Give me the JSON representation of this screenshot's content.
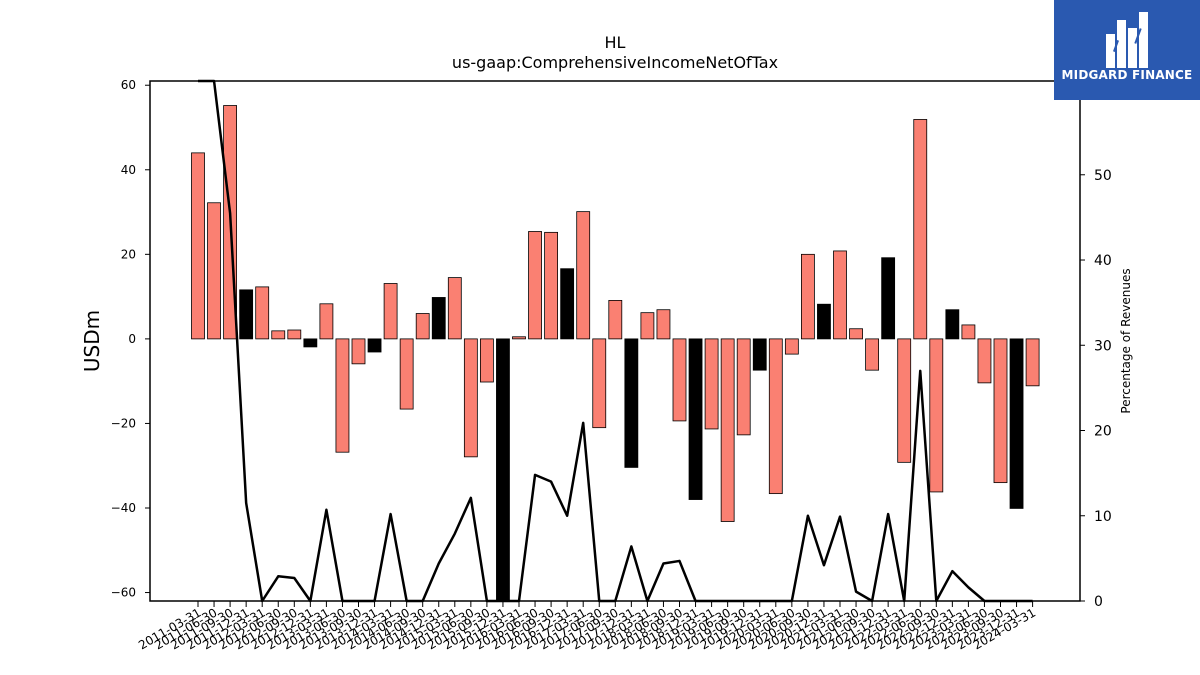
{
  "brand": {
    "name": "MIDGARD FINANCE",
    "color": "#2a59b0"
  },
  "chart_data": {
    "type": "bar",
    "title": "HL",
    "subtitle": "us-gaap:ComprehensiveIncomeNetOfTax",
    "ylabel": "USDm",
    "y2label": "Percentage of Revenues",
    "ylim": [
      -62,
      61
    ],
    "y2lim": [
      0,
      61
    ],
    "yticks": [
      -60,
      -40,
      -20,
      0,
      20,
      40,
      60
    ],
    "y2ticks": [
      0,
      10,
      20,
      30,
      40,
      50
    ],
    "grid": false,
    "colors": {
      "bar_default": "#fa8072",
      "bar_highlight": "#000000",
      "line": "#000000"
    },
    "categories": [
      "2011-03-31",
      "2011-06-30",
      "2011-09-30",
      "2011-12-31",
      "2012-03-31",
      "2012-06-30",
      "2012-09-30",
      "2012-12-31",
      "2013-03-31",
      "2013-06-30",
      "2013-09-30",
      "2013-12-31",
      "2014-03-31",
      "2014-06-30",
      "2014-09-30",
      "2014-12-31",
      "2015-03-31",
      "2015-06-30",
      "2015-09-30",
      "2015-12-31",
      "2016-03-31",
      "2016-06-30",
      "2016-09-30",
      "2016-12-31",
      "2017-03-31",
      "2017-06-30",
      "2017-09-30",
      "2017-12-31",
      "2018-03-31",
      "2018-06-30",
      "2018-09-30",
      "2018-12-31",
      "2019-03-31",
      "2019-06-30",
      "2019-09-30",
      "2019-12-31",
      "2020-03-31",
      "2020-06-30",
      "2020-09-30",
      "2020-12-31",
      "2021-03-31",
      "2021-06-30",
      "2021-09-30",
      "2021-12-31",
      "2022-03-31",
      "2022-06-30",
      "2022-09-30",
      "2022-12-31",
      "2023-03-31",
      "2023-06-30",
      "2023-09-30",
      "2023-12-31",
      "2024-03-31"
    ],
    "values": [
      44,
      32.2,
      55.2,
      11.6,
      12.3,
      1.9,
      2.1,
      -1.9,
      8.3,
      -26.8,
      -5.9,
      -3.1,
      13.1,
      -16.6,
      6,
      9.8,
      14.5,
      -27.9,
      -10.2,
      -62,
      0.5,
      25.4,
      25.2,
      16.6,
      30.1,
      -21,
      9.1,
      -30.4,
      6.2,
      6.9,
      -19.4,
      -38,
      -21.3,
      -43.2,
      -22.7,
      -7.4,
      -36.6,
      -3.6,
      20,
      8.2,
      20.8,
      2.4,
      -7.4,
      19.2,
      -29.2,
      51.9,
      -36.2,
      6.9,
      3.3,
      -10.4,
      -34,
      -40.1,
      -11.1
    ],
    "highlight": [
      false,
      false,
      false,
      true,
      false,
      false,
      false,
      true,
      false,
      false,
      false,
      true,
      false,
      false,
      false,
      true,
      false,
      false,
      false,
      true,
      false,
      false,
      false,
      true,
      false,
      false,
      false,
      true,
      false,
      false,
      false,
      true,
      false,
      false,
      false,
      true,
      false,
      false,
      false,
      true,
      false,
      false,
      false,
      true,
      false,
      false,
      false,
      true,
      false,
      false,
      false,
      true,
      false
    ],
    "line_series": {
      "name": "Percentage of Revenues",
      "values": [
        61,
        61,
        45.5,
        11.5,
        0,
        2.9,
        2.7,
        0,
        10.7,
        0,
        0,
        0,
        10.2,
        0,
        0,
        4.4,
        7.9,
        12.1,
        0,
        0,
        0,
        14.8,
        14.0,
        10.0,
        20.9,
        0,
        0,
        6.4,
        0,
        4.4,
        4.7,
        0,
        0,
        0,
        0,
        0,
        0,
        0,
        10.0,
        4.2,
        9.9,
        1.1,
        0,
        10.2,
        0,
        27.0,
        0,
        3.5,
        1.6,
        0,
        0,
        0,
        0
      ]
    }
  }
}
